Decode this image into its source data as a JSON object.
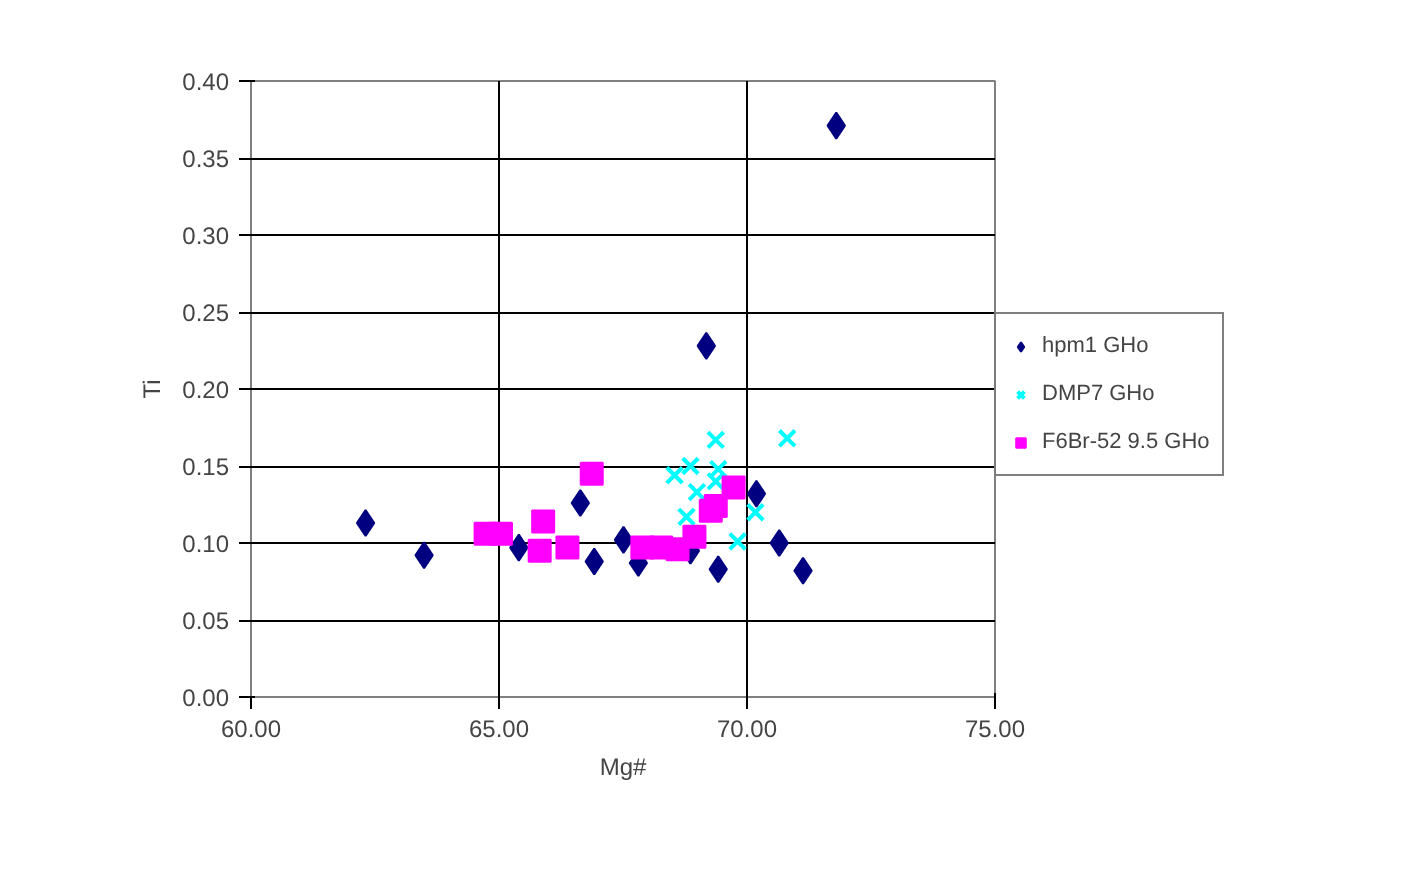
{
  "chart_data": {
    "type": "scatter",
    "xlabel": "Mg#",
    "ylabel": "Ti",
    "xlim": [
      60,
      75
    ],
    "ylim": [
      0,
      0.4
    ],
    "xticks": [
      {
        "value": 60,
        "label": "60.00"
      },
      {
        "value": 65,
        "label": "65.00"
      },
      {
        "value": 70,
        "label": "70.00"
      },
      {
        "value": 75,
        "label": "75.00"
      }
    ],
    "yticks": [
      {
        "value": 0,
        "label": "0.00"
      },
      {
        "value": 0.05,
        "label": "0.05"
      },
      {
        "value": 0.1,
        "label": "0.10"
      },
      {
        "value": 0.15,
        "label": "0.15"
      },
      {
        "value": 0.2,
        "label": "0.20"
      },
      {
        "value": 0.25,
        "label": "0.25"
      },
      {
        "value": 0.3,
        "label": "0.30"
      },
      {
        "value": 0.35,
        "label": "0.35"
      },
      {
        "value": 0.4,
        "label": "0.40"
      }
    ],
    "grid": true,
    "legend": "right",
    "series": [
      {
        "name": "hpm1 GHo",
        "color": "#000080",
        "marker": "diamond",
        "x": [
          71.8,
          69.18,
          62.31,
          63.49,
          65.4,
          66.64,
          66.92,
          67.51,
          67.81,
          68.86,
          69.42,
          70.19,
          70.65,
          71.13
        ],
        "values": [
          0.371,
          0.228,
          0.113,
          0.092,
          0.097,
          0.126,
          0.088,
          0.102,
          0.087,
          0.095,
          0.083,
          0.132,
          0.1,
          0.082
        ]
      },
      {
        "name": "DMP7 GHo",
        "color": "#00ffff",
        "marker": "cross",
        "x": [
          69.37,
          70.81,
          68.86,
          68.54,
          69.42,
          68.99,
          68.78,
          70.17,
          69.81,
          69.37
        ],
        "values": [
          0.167,
          0.168,
          0.15,
          0.144,
          0.148,
          0.133,
          0.117,
          0.12,
          0.101,
          0.14
        ]
      },
      {
        "name": "F6Br-52 9.5 GHo",
        "color": "#ff00ff",
        "marker": "square",
        "x": [
          64.73,
          65.04,
          65.89,
          65.82,
          66.38,
          66.87,
          67.89,
          68.27,
          68.6,
          68.94,
          69.27,
          69.37,
          69.73
        ],
        "values": [
          0.106,
          0.106,
          0.114,
          0.095,
          0.097,
          0.145,
          0.097,
          0.097,
          0.096,
          0.104,
          0.121,
          0.124,
          0.136
        ]
      }
    ]
  }
}
